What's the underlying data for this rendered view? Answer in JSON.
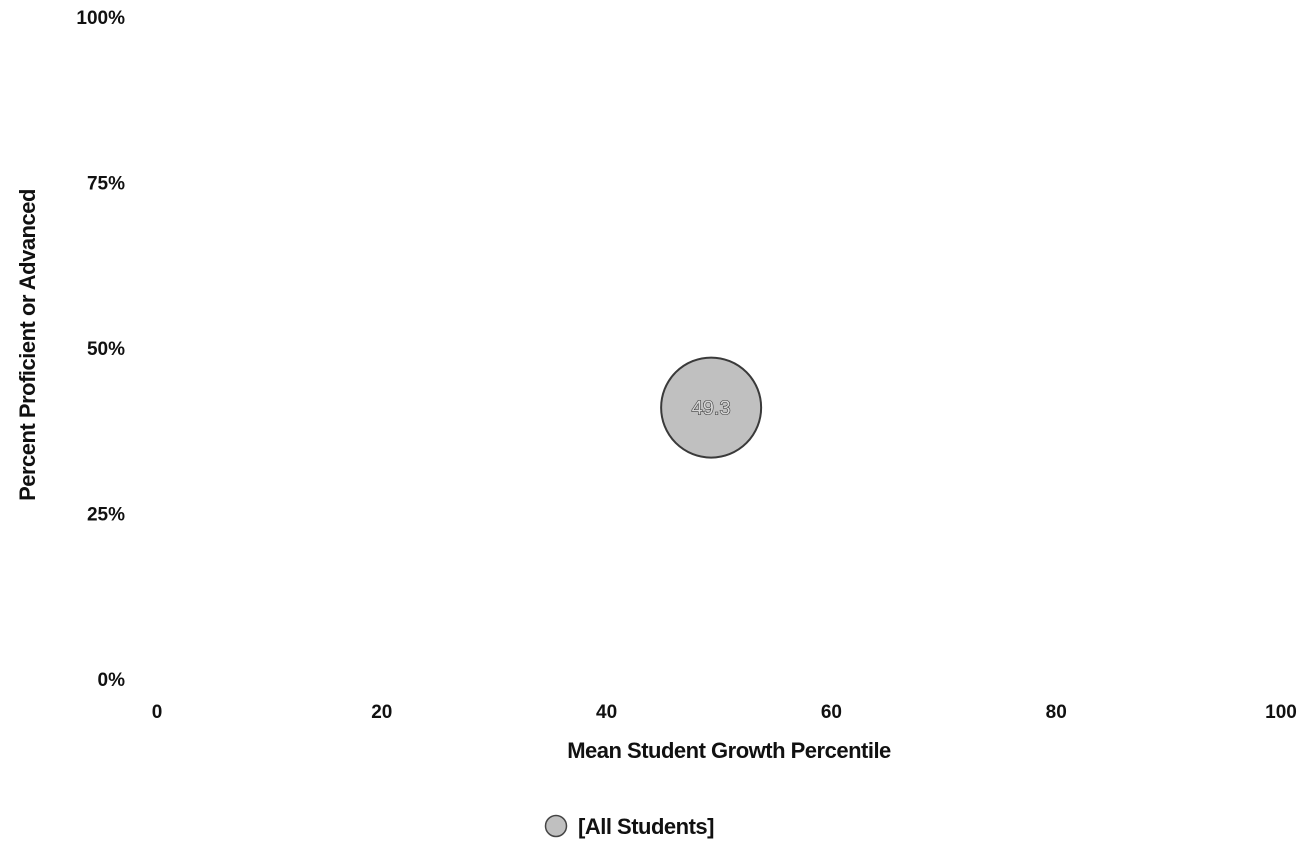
{
  "chart_data": {
    "type": "scatter",
    "xlabel": "Mean Student Growth Percentile",
    "ylabel": "Percent Proficient or Advanced",
    "xlim": [
      0,
      100
    ],
    "ylim": [
      0,
      100
    ],
    "x_ticks": [
      "0",
      "20",
      "40",
      "60",
      "80",
      "100"
    ],
    "y_ticks": [
      "0%",
      "25%",
      "50%",
      "75%",
      "100%"
    ],
    "grid": false,
    "legend_position": "bottom-center",
    "series": [
      {
        "name": "[All Students]",
        "color": "#c0c0c0",
        "points": [
          {
            "x": 49.3,
            "y": 41,
            "label": "49.3"
          }
        ]
      }
    ]
  }
}
